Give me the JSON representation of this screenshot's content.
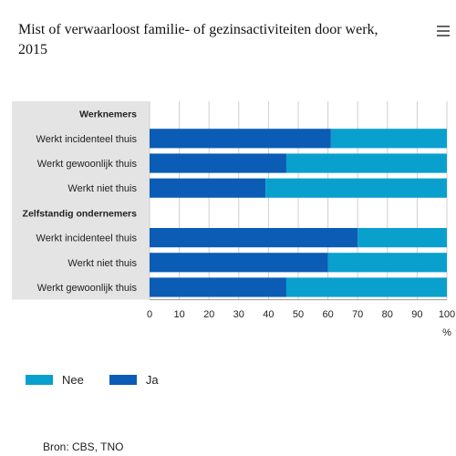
{
  "title": "Mist of verwaarloost familie- of gezinsactiviteiten door werk, 2015",
  "menu_icon": "hamburger-icon",
  "source": "Bron: CBS, TNO",
  "colors": {
    "ja": "#0b5cb5",
    "nee": "#09a0ce",
    "label_bg": "#e4e4e4",
    "grid": "#cfcfcf"
  },
  "legend": [
    {
      "label": "Nee",
      "color": "#09a0ce"
    },
    {
      "label": "Ja",
      "color": "#0b5cb5"
    }
  ],
  "chart_data": {
    "type": "bar",
    "orientation": "horizontal",
    "stacked": true,
    "categories": [
      {
        "label": "Werknemers",
        "header": true
      },
      {
        "label": "Werkt incidenteel thuis"
      },
      {
        "label": "Werkt gewoonlijk thuis"
      },
      {
        "label": "Werkt niet thuis"
      },
      {
        "label": "Zelfstandig ondernemers",
        "header": true
      },
      {
        "label": "Werkt incidenteel thuis"
      },
      {
        "label": "Werkt niet thuis"
      },
      {
        "label": "Werkt gewoonlijk thuis"
      }
    ],
    "series": [
      {
        "name": "Ja",
        "values": [
          null,
          61,
          46,
          39,
          null,
          70,
          60,
          46
        ]
      },
      {
        "name": "Nee",
        "values": [
          null,
          39,
          54,
          61,
          null,
          30,
          40,
          54
        ]
      }
    ],
    "xlim": [
      0,
      100
    ],
    "xticks": [
      "0",
      "10",
      "20",
      "30",
      "40",
      "50",
      "60",
      "70",
      "80",
      "90",
      "100"
    ],
    "xunit": "%",
    "grid": true,
    "legend_position": "bottom-left"
  }
}
